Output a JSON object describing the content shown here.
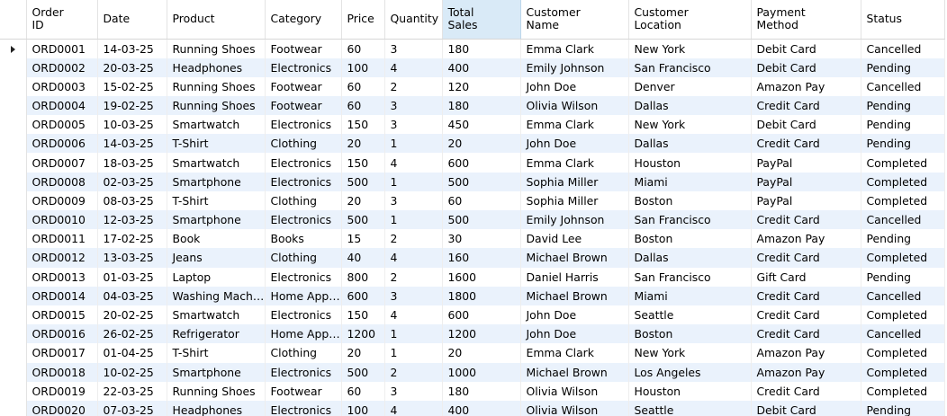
{
  "grid": {
    "columns": [
      {
        "key": "order_id",
        "label_lines": [
          "Order",
          "ID"
        ]
      },
      {
        "key": "date",
        "label_lines": [
          "Date"
        ]
      },
      {
        "key": "product",
        "label_lines": [
          "Product"
        ]
      },
      {
        "key": "category",
        "label_lines": [
          "Category"
        ]
      },
      {
        "key": "price",
        "label_lines": [
          "Price"
        ]
      },
      {
        "key": "quantity",
        "label_lines": [
          "Quantity"
        ]
      },
      {
        "key": "total_sales",
        "label_lines": [
          "Total",
          "Sales"
        ]
      },
      {
        "key": "customer_name",
        "label_lines": [
          "Customer",
          "Name"
        ]
      },
      {
        "key": "customer_location",
        "label_lines": [
          "Customer",
          "Location"
        ]
      },
      {
        "key": "payment_method",
        "label_lines": [
          "Payment",
          "Method"
        ]
      },
      {
        "key": "status",
        "label_lines": [
          "Status"
        ]
      }
    ],
    "sorted_column": "total_sales",
    "current_row_index": 0,
    "row_pointer_icon": "triangle-right-icon",
    "colors": {
      "alt_row": "#eaf2fc",
      "sorted_header": "#d9eaf7"
    },
    "rows": [
      [
        "ORD0001",
        "14-03-25",
        "Running Shoes",
        "Footwear",
        "60",
        "3",
        "180",
        "Emma Clark",
        "New York",
        "Debit Card",
        "Cancelled"
      ],
      [
        "ORD0002",
        "20-03-25",
        "Headphones",
        "Electronics",
        "100",
        "4",
        "400",
        "Emily Johnson",
        "San Francisco",
        "Debit Card",
        "Pending"
      ],
      [
        "ORD0003",
        "15-02-25",
        "Running Shoes",
        "Footwear",
        "60",
        "2",
        "120",
        "John Doe",
        "Denver",
        "Amazon Pay",
        "Cancelled"
      ],
      [
        "ORD0004",
        "19-02-25",
        "Running Shoes",
        "Footwear",
        "60",
        "3",
        "180",
        "Olivia Wilson",
        "Dallas",
        "Credit Card",
        "Pending"
      ],
      [
        "ORD0005",
        "10-03-25",
        "Smartwatch",
        "Electronics",
        "150",
        "3",
        "450",
        "Emma Clark",
        "New York",
        "Debit Card",
        "Pending"
      ],
      [
        "ORD0006",
        "14-03-25",
        "T-Shirt",
        "Clothing",
        "20",
        "1",
        "20",
        "John Doe",
        "Dallas",
        "Credit Card",
        "Pending"
      ],
      [
        "ORD0007",
        "18-03-25",
        "Smartwatch",
        "Electronics",
        "150",
        "4",
        "600",
        "Emma Clark",
        "Houston",
        "PayPal",
        "Completed"
      ],
      [
        "ORD0008",
        "02-03-25",
        "Smartphone",
        "Electronics",
        "500",
        "1",
        "500",
        "Sophia Miller",
        "Miami",
        "PayPal",
        "Completed"
      ],
      [
        "ORD0009",
        "08-03-25",
        "T-Shirt",
        "Clothing",
        "20",
        "3",
        "60",
        "Sophia Miller",
        "Boston",
        "PayPal",
        "Completed"
      ],
      [
        "ORD0010",
        "12-03-25",
        "Smartphone",
        "Electronics",
        "500",
        "1",
        "500",
        "Emily Johnson",
        "San Francisco",
        "Credit Card",
        "Cancelled"
      ],
      [
        "ORD0011",
        "17-02-25",
        "Book",
        "Books",
        "15",
        "2",
        "30",
        "David Lee",
        "Boston",
        "Amazon Pay",
        "Pending"
      ],
      [
        "ORD0012",
        "13-03-25",
        "Jeans",
        "Clothing",
        "40",
        "4",
        "160",
        "Michael Brown",
        "Dallas",
        "Credit Card",
        "Completed"
      ],
      [
        "ORD0013",
        "01-03-25",
        "Laptop",
        "Electronics",
        "800",
        "2",
        "1600",
        "Daniel Harris",
        "San Francisco",
        "Gift Card",
        "Pending"
      ],
      [
        "ORD0014",
        "04-03-25",
        "Washing Machine",
        "Home Appliances",
        "600",
        "3",
        "1800",
        "Michael Brown",
        "Miami",
        "Credit Card",
        "Cancelled"
      ],
      [
        "ORD0015",
        "20-02-25",
        "Smartwatch",
        "Electronics",
        "150",
        "4",
        "600",
        "John Doe",
        "Seattle",
        "Credit Card",
        "Completed"
      ],
      [
        "ORD0016",
        "26-02-25",
        "Refrigerator",
        "Home Appliances",
        "1200",
        "1",
        "1200",
        "John Doe",
        "Boston",
        "Credit Card",
        "Cancelled"
      ],
      [
        "ORD0017",
        "01-04-25",
        "T-Shirt",
        "Clothing",
        "20",
        "1",
        "20",
        "Emma Clark",
        "New York",
        "Amazon Pay",
        "Completed"
      ],
      [
        "ORD0018",
        "10-02-25",
        "Smartphone",
        "Electronics",
        "500",
        "2",
        "1000",
        "Michael Brown",
        "Los Angeles",
        "Amazon Pay",
        "Completed"
      ],
      [
        "ORD0019",
        "22-03-25",
        "Running Shoes",
        "Footwear",
        "60",
        "3",
        "180",
        "Olivia Wilson",
        "Houston",
        "Credit Card",
        "Completed"
      ],
      [
        "ORD0020",
        "07-03-25",
        "Headphones",
        "Electronics",
        "100",
        "4",
        "400",
        "Olivia Wilson",
        "Seattle",
        "Debit Card",
        "Pending"
      ]
    ]
  }
}
